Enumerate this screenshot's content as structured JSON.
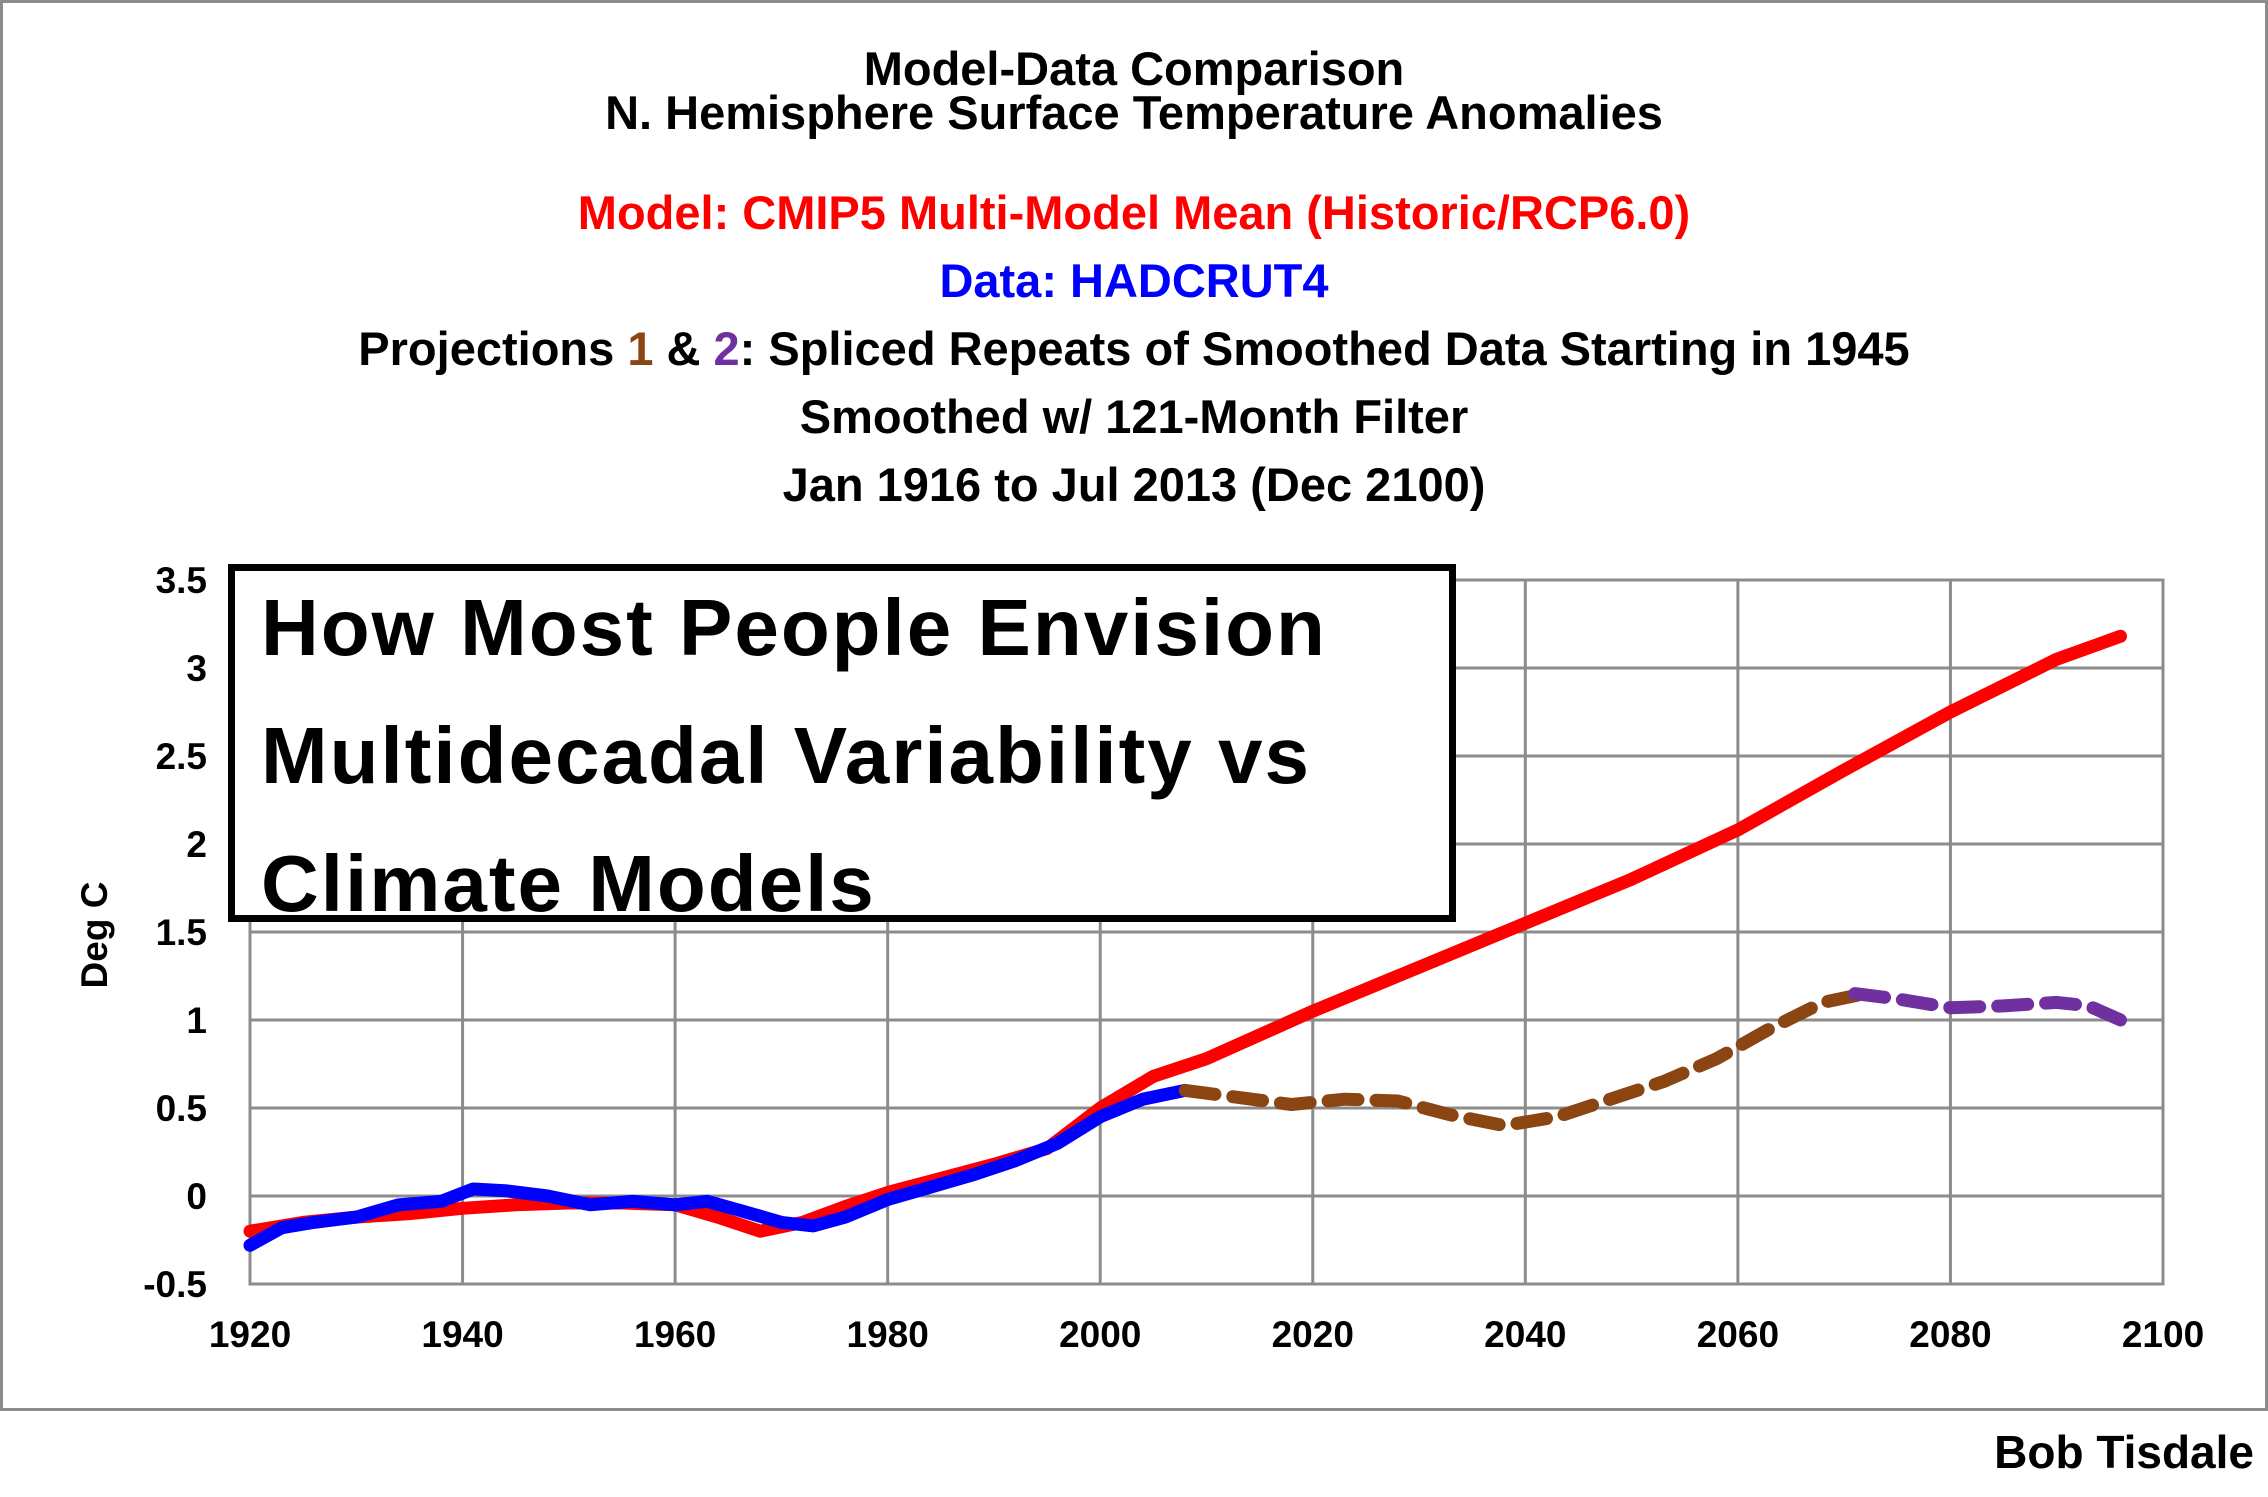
{
  "titles": {
    "line1": "Model-Data Comparison",
    "line2": "N. Hemisphere Surface Temperature Anomalies",
    "line3": "Model: CMIP5 Multi-Model Mean (Historic/RCP6.0)",
    "line4": "Data: HADCRUT4",
    "line5_prefix": "Projections ",
    "line5_one": "1",
    "line5_amp": " & ",
    "line5_two": "2",
    "line5_suffix": ": Spliced Repeats of Smoothed Data Starting in 1945",
    "line6": "Smoothed w/ 121-Month Filter",
    "line7": "Jan 1916 to Jul 2013  (Dec 2100)"
  },
  "callout": {
    "line1": "How Most People Envision",
    "line2": "Multidecadal Variability vs",
    "line3": "Climate Models"
  },
  "credit": "Bob Tisdale",
  "colors": {
    "model": "#ff0000",
    "data": "#0000ff",
    "projection1": "#8b4513",
    "projection2": "#7030a0"
  },
  "chart_data": {
    "type": "line",
    "ylabel": "Deg C",
    "xlabel": "",
    "xlim": [
      1920,
      2100
    ],
    "ylim": [
      -0.5,
      3.5
    ],
    "grid": true,
    "x_ticks": [
      "1920",
      "1940",
      "1960",
      "1980",
      "2000",
      "2020",
      "2040",
      "2060",
      "2080",
      "2100"
    ],
    "y_ticks": [
      "-0.5",
      "0",
      "0.5",
      "1",
      "1.5",
      "2",
      "2.5",
      "3",
      "3.5"
    ],
    "series": [
      {
        "name": "Model: CMIP5 Multi-Model Mean (Historic/RCP6.0)",
        "style": "solid",
        "x": [
          1920,
          1925,
          1930,
          1935,
          1940,
          1945,
          1950,
          1955,
          1960,
          1964,
          1968,
          1972,
          1976,
          1980,
          1985,
          1990,
          1995,
          2000,
          2005,
          2010,
          2020,
          2030,
          2040,
          2050,
          2060,
          2070,
          2080,
          2090,
          2096
        ],
        "values": [
          -0.2,
          -0.15,
          -0.12,
          -0.1,
          -0.07,
          -0.05,
          -0.04,
          -0.04,
          -0.05,
          -0.12,
          -0.2,
          -0.15,
          -0.06,
          0.02,
          0.1,
          0.18,
          0.27,
          0.5,
          0.68,
          0.78,
          1.05,
          1.3,
          1.55,
          1.8,
          2.08,
          2.42,
          2.75,
          3.05,
          3.18
        ]
      },
      {
        "name": "Data: HADCRUT4",
        "style": "solid",
        "x": [
          1920,
          1923,
          1926,
          1930,
          1934,
          1938,
          1941,
          1944,
          1948,
          1952,
          1956,
          1960,
          1963,
          1966,
          1970,
          1973,
          1976,
          1980,
          1984,
          1988,
          1992,
          1996,
          2000,
          2004,
          2008
        ],
        "values": [
          -0.28,
          -0.18,
          -0.15,
          -0.12,
          -0.05,
          -0.03,
          0.04,
          0.03,
          0.0,
          -0.05,
          -0.03,
          -0.05,
          -0.03,
          -0.08,
          -0.15,
          -0.17,
          -0.12,
          -0.02,
          0.05,
          0.12,
          0.2,
          0.3,
          0.45,
          0.55,
          0.6
        ]
      },
      {
        "name": "Projection 1",
        "style": "dashed",
        "x": [
          2008,
          2013,
          2018,
          2023,
          2028,
          2033,
          2038,
          2043,
          2048,
          2053,
          2058,
          2063,
          2068,
          2072
        ],
        "values": [
          0.6,
          0.56,
          0.52,
          0.55,
          0.54,
          0.46,
          0.4,
          0.45,
          0.55,
          0.65,
          0.78,
          0.95,
          1.1,
          1.15
        ]
      },
      {
        "name": "Projection 2",
        "style": "dashed",
        "x": [
          2071,
          2075,
          2080,
          2085,
          2090,
          2093,
          2096
        ],
        "values": [
          1.15,
          1.12,
          1.07,
          1.08,
          1.1,
          1.08,
          1.0
        ]
      }
    ]
  }
}
